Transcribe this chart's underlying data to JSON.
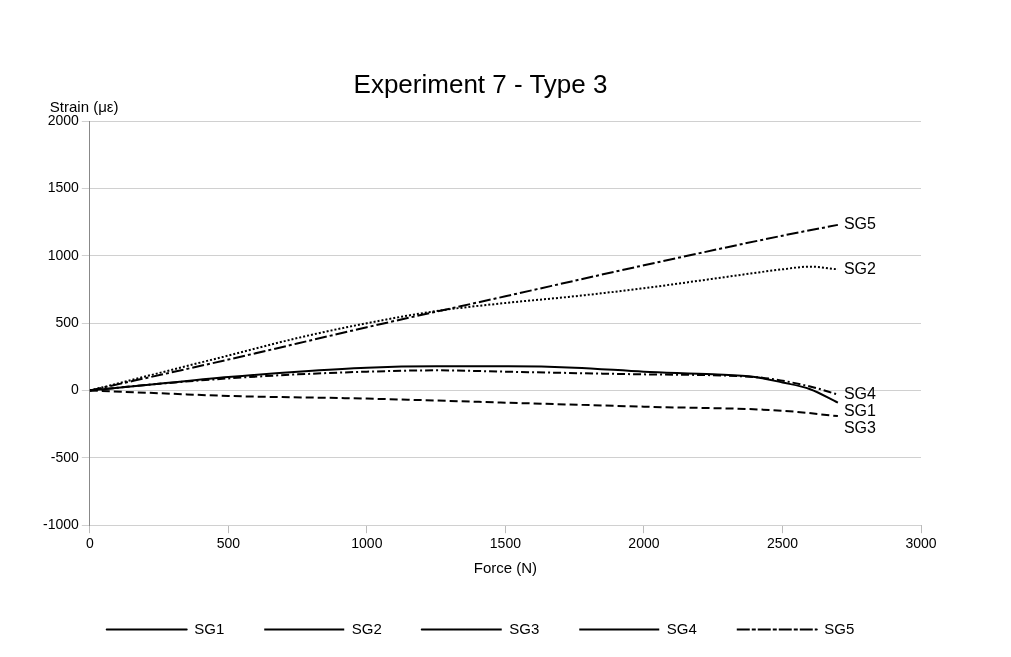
{
  "chart_data": {
    "type": "line",
    "title": "Experiment 7 - Type 3",
    "xlabel": "Force (N)",
    "ylabel": "Strain (με)",
    "xlim": [
      0,
      3000
    ],
    "xticks": [
      0,
      500,
      1000,
      1500,
      2000,
      2500,
      3000
    ],
    "ylim": [
      -1000,
      2000
    ],
    "yticks": [
      -1000,
      -500,
      0,
      500,
      1000,
      1500,
      2000
    ],
    "grid": "y",
    "legend": "bottom",
    "marker": "none",
    "series": [
      {
        "name": "SG1",
        "color": "#000000",
        "line_style": "solid",
        "x": [
          0,
          250,
          500,
          750,
          1000,
          1250,
          1500,
          1750,
          2000,
          2250,
          2400,
          2500,
          2600,
          2700
        ],
        "values": [
          0,
          50,
          100,
          140,
          170,
          180,
          180,
          170,
          140,
          120,
          100,
          60,
          10,
          -90
        ]
      },
      {
        "name": "SG2",
        "color": "#000000",
        "line_style": "dotted",
        "x": [
          0,
          250,
          500,
          750,
          1000,
          1250,
          1500,
          1750,
          2000,
          2250,
          2500,
          2600,
          2700
        ],
        "values": [
          0,
          130,
          260,
          390,
          500,
          590,
          650,
          700,
          760,
          830,
          900,
          920,
          900
        ]
      },
      {
        "name": "SG3",
        "color": "#000000",
        "line_style": "dashed",
        "x": [
          0,
          250,
          500,
          1000,
          1500,
          2000,
          2500,
          2700
        ],
        "values": [
          0,
          -20,
          -40,
          -60,
          -90,
          -120,
          -150,
          -190
        ]
      },
      {
        "name": "SG4",
        "color": "#000000",
        "line_style": "dashdot",
        "x": [
          0,
          250,
          500,
          750,
          1000,
          1250,
          1500,
          2000,
          2400,
          2600,
          2700
        ],
        "values": [
          0,
          50,
          90,
          120,
          140,
          150,
          140,
          120,
          100,
          30,
          -30
        ]
      },
      {
        "name": "SG5",
        "color": "#000000",
        "line_style": "longdashdot",
        "x": [
          0,
          500,
          1000,
          1500,
          2000,
          2500,
          2700
        ],
        "values": [
          0,
          230,
          470,
          700,
          930,
          1150,
          1230
        ]
      }
    ]
  }
}
